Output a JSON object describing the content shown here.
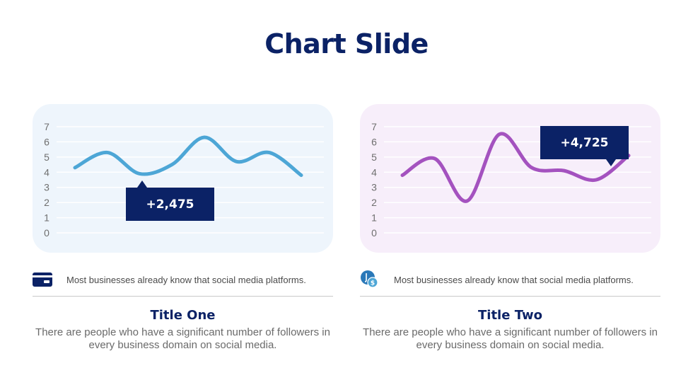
{
  "slide": {
    "title": "Chart Slide"
  },
  "colors": {
    "navy": "#0b2266",
    "series_blue": "#4da6d6",
    "series_purple": "#a452bf"
  },
  "chart_data": [
    {
      "type": "line",
      "title": "",
      "xlabel": "",
      "ylabel": "",
      "y_ticks": [
        "0",
        "1",
        "2",
        "3",
        "4",
        "5",
        "6",
        "7"
      ],
      "ylim": [
        0,
        7
      ],
      "grid": true,
      "smooth": true,
      "series": [
        {
          "color": "#4da6d6",
          "values": [
            4.3,
            5.3,
            3.9,
            4.5,
            6.3,
            4.7,
            5.3,
            3.8
          ]
        }
      ],
      "callout": "+2,475"
    },
    {
      "type": "line",
      "title": "",
      "xlabel": "",
      "ylabel": "",
      "y_ticks": [
        "0",
        "1",
        "2",
        "3",
        "4",
        "5",
        "6",
        "7"
      ],
      "ylim": [
        0,
        7
      ],
      "grid": true,
      "smooth": true,
      "series": [
        {
          "color": "#a452bf",
          "values": [
            3.8,
            4.9,
            2.1,
            6.5,
            4.3,
            4.1,
            3.5,
            5.1
          ]
        }
      ],
      "callout": "+4,725"
    }
  ],
  "cards": [
    {
      "icon": "credit-card-icon",
      "note": "Most businesses already know that social media platforms.",
      "title": "Title One",
      "description": "There are people who have a significant number of followers in every business domain on social media."
    },
    {
      "icon": "money-bag-icon",
      "note": "Most businesses already know that social media platforms.",
      "title": "Title Two",
      "description": "There are people who have a significant number of followers in every business domain on social media."
    }
  ]
}
